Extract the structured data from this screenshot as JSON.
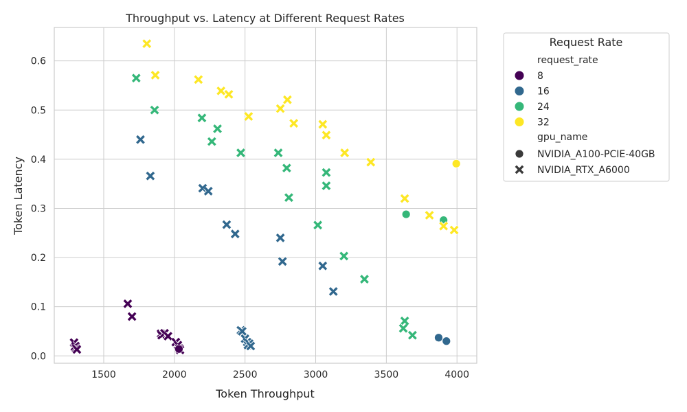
{
  "chart_data": {
    "type": "scatter",
    "title": "Throughput vs. Latency at Different Request Rates",
    "xlabel": "Token Throughput",
    "ylabel": "Token Latency",
    "xlim": [
      1150,
      4140
    ],
    "ylim": [
      -0.015,
      0.668
    ],
    "xticks": [
      "1500",
      "2000",
      "2500",
      "3000",
      "3500",
      "4000"
    ],
    "yticks": [
      "0.0",
      "0.1",
      "0.2",
      "0.3",
      "0.4",
      "0.5",
      "0.6"
    ],
    "grid": true,
    "legend_placement": "outside-right",
    "legend": {
      "title": "Request Rate",
      "hue_header": "request_rate",
      "hue_entries": [
        {
          "label": "8",
          "color": "#440154"
        },
        {
          "label": "16",
          "color": "#31688e"
        },
        {
          "label": "24",
          "color": "#35b779"
        },
        {
          "label": "32",
          "color": "#fde725"
        }
      ],
      "style_header": "gpu_name",
      "style_entries": [
        {
          "label": "NVIDIA_A100-PCIE-40GB",
          "marker": "circle"
        },
        {
          "label": "NVIDIA_RTX_A6000",
          "marker": "x"
        }
      ]
    },
    "series": [
      {
        "request_rate": "8",
        "gpu": "NVIDIA_RTX_A6000",
        "color": "#440154",
        "points": [
          [
            1670,
            0.106
          ],
          [
            1700,
            0.08
          ],
          [
            1905,
            0.045
          ],
          [
            1910,
            0.042
          ],
          [
            1930,
            0.046
          ],
          [
            1955,
            0.04
          ],
          [
            2010,
            0.028
          ],
          [
            2025,
            0.022
          ],
          [
            2035,
            0.015
          ],
          [
            2040,
            0.012
          ],
          [
            1290,
            0.027
          ],
          [
            1295,
            0.018
          ],
          [
            1300,
            0.02
          ],
          [
            1305,
            0.015
          ],
          [
            1310,
            0.013
          ]
        ]
      },
      {
        "request_rate": "8",
        "gpu": "NVIDIA_A100-PCIE-40GB",
        "color": "#440154",
        "points": [
          [
            2032,
            0.014
          ]
        ]
      },
      {
        "request_rate": "16",
        "gpu": "NVIDIA_RTX_A6000",
        "color": "#31688e",
        "points": [
          [
            1760,
            0.44
          ],
          [
            1830,
            0.366
          ],
          [
            2200,
            0.341
          ],
          [
            2240,
            0.335
          ],
          [
            2370,
            0.267
          ],
          [
            2430,
            0.248
          ],
          [
            2750,
            0.24
          ],
          [
            2765,
            0.192
          ],
          [
            3050,
            0.183
          ],
          [
            3125,
            0.131
          ],
          [
            2470,
            0.052
          ],
          [
            2480,
            0.05
          ],
          [
            2500,
            0.035
          ],
          [
            2515,
            0.028
          ],
          [
            2520,
            0.022
          ],
          [
            2530,
            0.025
          ],
          [
            2540,
            0.02
          ]
        ]
      },
      {
        "request_rate": "16",
        "gpu": "NVIDIA_A100-PCIE-40GB",
        "color": "#31688e",
        "points": [
          [
            3870,
            0.037
          ],
          [
            3925,
            0.03
          ]
        ]
      },
      {
        "request_rate": "24",
        "gpu": "NVIDIA_RTX_A6000",
        "color": "#35b779",
        "points": [
          [
            1730,
            0.565
          ],
          [
            1860,
            0.5
          ],
          [
            2195,
            0.484
          ],
          [
            2305,
            0.462
          ],
          [
            2265,
            0.436
          ],
          [
            2470,
            0.413
          ],
          [
            2735,
            0.413
          ],
          [
            2795,
            0.382
          ],
          [
            3075,
            0.373
          ],
          [
            3075,
            0.346
          ],
          [
            2810,
            0.322
          ],
          [
            3015,
            0.266
          ],
          [
            3200,
            0.203
          ],
          [
            3345,
            0.156
          ],
          [
            3630,
            0.071
          ],
          [
            3620,
            0.056
          ],
          [
            3685,
            0.042
          ]
        ]
      },
      {
        "request_rate": "24",
        "gpu": "NVIDIA_A100-PCIE-40GB",
        "color": "#35b779",
        "points": [
          [
            3640,
            0.288
          ],
          [
            3905,
            0.276
          ]
        ]
      },
      {
        "request_rate": "32",
        "gpu": "NVIDIA_RTX_A6000",
        "color": "#fde725",
        "points": [
          [
            1805,
            0.635
          ],
          [
            1865,
            0.571
          ],
          [
            2170,
            0.562
          ],
          [
            2330,
            0.539
          ],
          [
            2385,
            0.532
          ],
          [
            2800,
            0.521
          ],
          [
            2750,
            0.503
          ],
          [
            2525,
            0.487
          ],
          [
            2845,
            0.473
          ],
          [
            3050,
            0.471
          ],
          [
            3075,
            0.449
          ],
          [
            3205,
            0.413
          ],
          [
            3390,
            0.394
          ],
          [
            3630,
            0.32
          ],
          [
            3805,
            0.286
          ],
          [
            3905,
            0.264
          ],
          [
            3980,
            0.256
          ]
        ]
      },
      {
        "request_rate": "32",
        "gpu": "NVIDIA_A100-PCIE-40GB",
        "color": "#fde725",
        "points": [
          [
            3995,
            0.391
          ]
        ]
      }
    ]
  }
}
